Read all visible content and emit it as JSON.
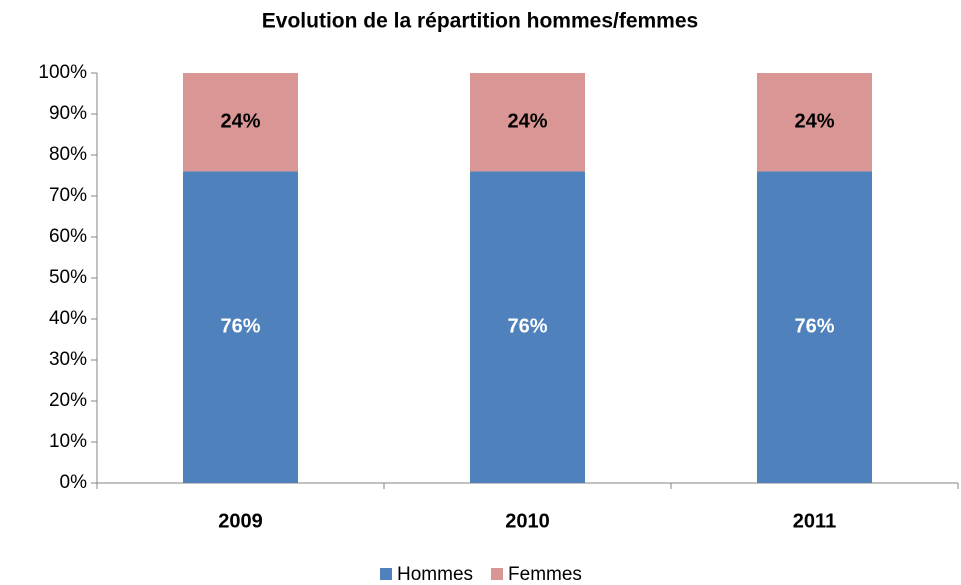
{
  "chart_data": {
    "type": "stacked_bar",
    "title": "Evolution de la répartition hommes/femmes",
    "categories": [
      "2009",
      "2010",
      "2011"
    ],
    "series": [
      {
        "name": "Hommes",
        "color": "#4f81bd",
        "values": [
          76,
          76,
          76
        ],
        "value_labels": [
          "76%",
          "76%",
          "76%"
        ]
      },
      {
        "name": "Femmes",
        "color": "#d99694",
        "values": [
          24,
          24,
          24
        ],
        "value_labels": [
          "24%",
          "24%",
          "24%"
        ]
      }
    ],
    "ylim": [
      0,
      100
    ],
    "yticks": [
      {
        "value": 0,
        "label": "0%"
      },
      {
        "value": 10,
        "label": "10%"
      },
      {
        "value": 20,
        "label": "20%"
      },
      {
        "value": 30,
        "label": "30%"
      },
      {
        "value": 40,
        "label": "40%"
      },
      {
        "value": 50,
        "label": "50%"
      },
      {
        "value": 60,
        "label": "60%"
      },
      {
        "value": 70,
        "label": "70%"
      },
      {
        "value": 80,
        "label": "80%"
      },
      {
        "value": 90,
        "label": "90%"
      },
      {
        "value": 100,
        "label": "100%"
      }
    ],
    "legend": "bottom"
  }
}
